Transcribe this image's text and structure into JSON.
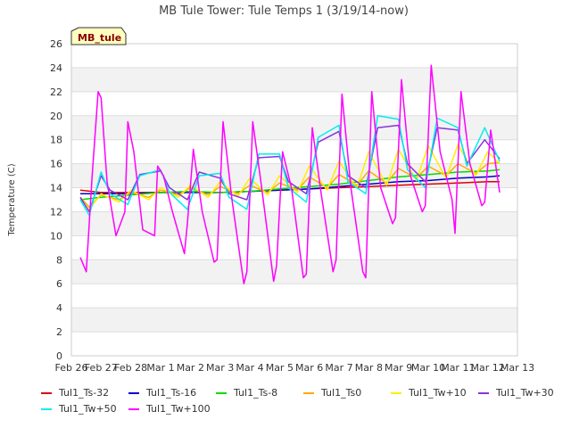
{
  "chart_data": {
    "type": "line",
    "title": "MB Tule Tower: Tule Temps 1 (3/19/14-now)",
    "xlabel": "",
    "ylabel": "Temperature (C)",
    "ylim": [
      0,
      26
    ],
    "yticks": [
      0,
      2,
      4,
      6,
      8,
      10,
      12,
      14,
      16,
      18,
      20,
      22,
      24,
      26
    ],
    "xlim": [
      0,
      15
    ],
    "xticks": [
      "Feb 26",
      "Feb 27",
      "Feb 28",
      "Mar 1",
      "Mar 2",
      "Mar 3",
      "Mar 4",
      "Mar 5",
      "Mar 6",
      "Mar 7",
      "Mar 8",
      "Mar 9",
      "Mar 10",
      "Mar 11",
      "Mar 12",
      "Mar 13"
    ],
    "grid": true,
    "badge": "MB_tule",
    "series": [
      {
        "name": "Tul1_Ts-32",
        "color": "#dd0000",
        "x": [
          0.3,
          1.0,
          2.0,
          3.0,
          4.0,
          5.0,
          6.0,
          7.0,
          8.0,
          9.0,
          10.0,
          11.0,
          12.0,
          13.0,
          14.0,
          14.4
        ],
        "y": [
          13.8,
          13.6,
          13.6,
          13.6,
          13.6,
          13.6,
          13.7,
          13.8,
          13.9,
          14.0,
          14.1,
          14.2,
          14.3,
          14.4,
          14.5,
          14.5
        ]
      },
      {
        "name": "Tul1_Ts-16",
        "color": "#0000cc",
        "x": [
          0.3,
          1.0,
          2.0,
          3.0,
          4.0,
          5.0,
          6.0,
          7.0,
          8.0,
          9.0,
          10.0,
          11.0,
          12.0,
          13.0,
          14.0,
          14.4
        ],
        "y": [
          13.5,
          13.5,
          13.5,
          13.6,
          13.6,
          13.6,
          13.7,
          13.8,
          13.9,
          14.1,
          14.3,
          14.5,
          14.6,
          14.8,
          14.9,
          15.0
        ]
      },
      {
        "name": "Tul1_Ts-8",
        "color": "#00dd00",
        "x": [
          0.3,
          1.0,
          2.0,
          3.0,
          4.0,
          5.0,
          6.0,
          7.0,
          8.0,
          9.0,
          10.0,
          11.0,
          12.0,
          13.0,
          14.0,
          14.4
        ],
        "y": [
          13.0,
          13.2,
          13.4,
          13.6,
          13.7,
          13.6,
          13.7,
          13.9,
          14.1,
          14.3,
          14.6,
          14.9,
          15.1,
          15.3,
          15.4,
          15.5
        ]
      },
      {
        "name": "Tul1_Ts0",
        "color": "#ffaa00",
        "x": [
          0.3,
          0.6,
          1.0,
          1.6,
          2.0,
          2.6,
          3.0,
          3.6,
          4.0,
          4.6,
          5.0,
          5.6,
          6.0,
          6.6,
          7.0,
          7.6,
          8.0,
          8.6,
          9.0,
          9.6,
          10.0,
          10.6,
          11.0,
          11.6,
          12.0,
          12.6,
          13.0,
          13.6,
          14.0,
          14.4
        ],
        "y": [
          13.2,
          12.4,
          13.4,
          13.0,
          13.6,
          13.2,
          13.8,
          13.4,
          14.0,
          13.4,
          14.1,
          13.5,
          14.2,
          13.6,
          14.4,
          13.8,
          14.9,
          14.0,
          15.1,
          14.2,
          15.4,
          14.4,
          15.6,
          14.8,
          15.8,
          15.0,
          16.0,
          15.2,
          16.0,
          16.1
        ]
      },
      {
        "name": "Tul1_Tw+10",
        "color": "#ffee00",
        "x": [
          0.3,
          0.6,
          1.0,
          1.6,
          2.0,
          2.6,
          3.0,
          3.6,
          4.0,
          4.6,
          5.0,
          5.6,
          6.0,
          6.6,
          7.0,
          7.6,
          8.0,
          8.6,
          9.0,
          9.6,
          10.0,
          10.6,
          11.0,
          11.6,
          12.0,
          12.6,
          13.0,
          13.6,
          14.0,
          14.4
        ],
        "y": [
          13.0,
          12.2,
          13.5,
          12.8,
          13.8,
          13.0,
          14.0,
          13.2,
          14.2,
          13.2,
          14.5,
          13.3,
          14.8,
          13.4,
          15.0,
          13.6,
          15.8,
          13.8,
          16.2,
          14.0,
          17.0,
          14.2,
          17.2,
          14.6,
          17.5,
          14.8,
          17.6,
          15.0,
          17.0,
          16.0
        ]
      },
      {
        "name": "Tul1_Tw+30",
        "color": "#8833dd",
        "x": [
          0.3,
          0.6,
          1.0,
          1.3,
          1.9,
          2.3,
          3.0,
          3.3,
          3.9,
          4.3,
          5.0,
          5.3,
          5.9,
          6.3,
          7.0,
          7.3,
          7.9,
          8.3,
          9.0,
          9.3,
          9.9,
          10.3,
          11.0,
          11.3,
          11.9,
          12.3,
          13.0,
          13.3,
          13.9,
          14.4
        ],
        "y": [
          13.2,
          12.0,
          15.0,
          13.8,
          13.0,
          15.1,
          15.4,
          14.0,
          13.0,
          15.3,
          14.8,
          13.5,
          13.0,
          16.5,
          16.6,
          14.5,
          13.5,
          17.8,
          18.7,
          15.0,
          14.0,
          19.0,
          19.2,
          16.0,
          14.5,
          19.0,
          18.8,
          16.0,
          18.0,
          16.4
        ]
      },
      {
        "name": "Tul1_Tw+50",
        "color": "#00eeee",
        "x": [
          0.3,
          0.6,
          1.0,
          1.3,
          1.9,
          2.3,
          3.0,
          3.3,
          3.9,
          4.3,
          5.0,
          5.3,
          5.9,
          6.3,
          7.0,
          7.3,
          7.9,
          8.3,
          9.0,
          9.3,
          9.9,
          10.3,
          11.0,
          11.3,
          11.9,
          12.3,
          13.0,
          13.3,
          13.9,
          14.4
        ],
        "y": [
          13.0,
          11.7,
          15.3,
          13.5,
          12.6,
          15.0,
          15.5,
          13.6,
          12.2,
          15.0,
          15.2,
          13.2,
          12.2,
          16.8,
          16.8,
          14.0,
          12.8,
          18.2,
          19.2,
          14.5,
          13.5,
          20.0,
          19.7,
          15.5,
          14.0,
          19.8,
          19.0,
          15.8,
          19.0,
          16.2
        ]
      },
      {
        "name": "Tul1_Tw+100",
        "color": "#ff00ff",
        "x": [
          0.3,
          0.5,
          0.7,
          0.9,
          1.0,
          1.2,
          1.5,
          1.8,
          1.9,
          2.1,
          2.4,
          2.8,
          2.9,
          3.1,
          3.4,
          3.8,
          3.9,
          4.1,
          4.4,
          4.8,
          4.9,
          5.1,
          5.4,
          5.8,
          5.9,
          6.1,
          6.4,
          6.8,
          6.9,
          7.1,
          7.4,
          7.8,
          7.9,
          8.1,
          8.4,
          8.8,
          8.9,
          9.1,
          9.4,
          9.8,
          9.9,
          10.1,
          10.4,
          10.8,
          10.9,
          11.1,
          11.4,
          11.8,
          11.9,
          12.1,
          12.4,
          12.8,
          12.9,
          13.1,
          13.4,
          13.8,
          13.9,
          14.1,
          14.4
        ],
        "y": [
          8.2,
          7.0,
          15.0,
          22.0,
          21.5,
          14.5,
          10.0,
          12.0,
          19.5,
          17.0,
          10.5,
          10.0,
          15.8,
          15.0,
          12.0,
          8.5,
          11.0,
          17.2,
          12.0,
          7.8,
          8.0,
          19.5,
          13.0,
          6.0,
          7.0,
          19.5,
          14.0,
          6.2,
          7.5,
          17.0,
          14.0,
          6.5,
          6.8,
          19.0,
          13.5,
          7.0,
          8.0,
          21.8,
          14.0,
          7.0,
          6.5,
          22.0,
          14.0,
          11.0,
          11.5,
          23.0,
          15.0,
          12.0,
          12.5,
          24.2,
          17.0,
          13.0,
          10.2,
          22.0,
          16.0,
          12.5,
          12.8,
          18.8,
          13.6
        ]
      }
    ]
  }
}
